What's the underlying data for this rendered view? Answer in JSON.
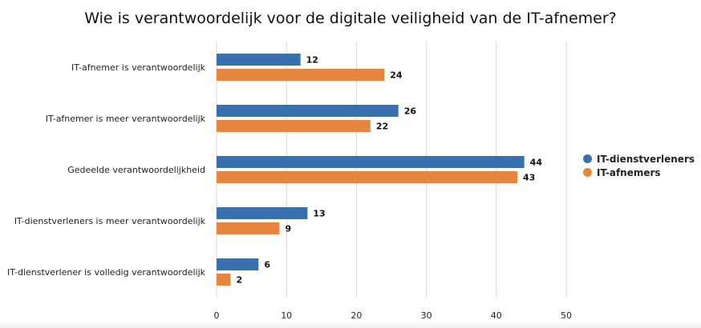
{
  "chart_data": {
    "type": "bar",
    "orientation": "horizontal",
    "title": "Wie is verantwoordelijk voor de digitale veiligheid van de IT-afnemer?",
    "categories": [
      "IT-afnemer is verantwoordelijk",
      "IT-afnemer is meer verantwoordelijk",
      "Gedeelde verantwoordelijkheid",
      "IT-dienstverleners is meer verantwoordelijk",
      "IT-dienstverlener is volledig verantwoordelijk"
    ],
    "series": [
      {
        "name": "IT-dienstverleners",
        "color": "#3570b0",
        "values": [
          12,
          26,
          44,
          13,
          6
        ]
      },
      {
        "name": "IT-afnemers",
        "color": "#e5853f",
        "values": [
          24,
          22,
          43,
          9,
          2
        ]
      }
    ],
    "xlim": [
      0,
      50
    ],
    "xticks": [
      0,
      10,
      20,
      30,
      40,
      50
    ],
    "grid": true,
    "legend": "right"
  }
}
